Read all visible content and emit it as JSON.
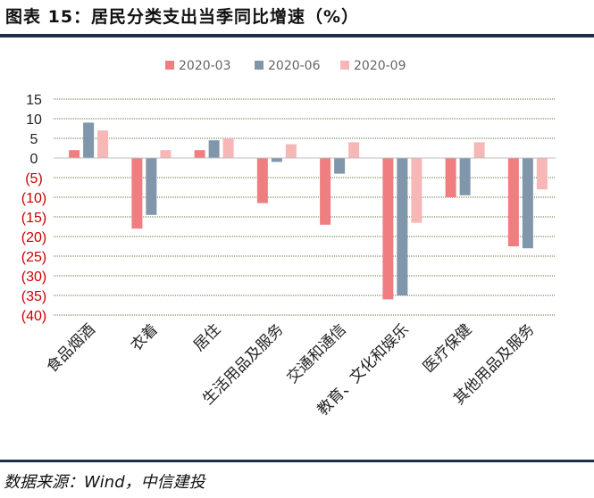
{
  "title": "图表 15：居民分类支出当季同比增速（%）",
  "source": "数据来源：Wind，中信建投",
  "colors": {
    "series": [
      "#f07e80",
      "#7f96ab",
      "#f6b7b6"
    ],
    "negative_tick": "#cc0000",
    "positive_tick": "#222222",
    "grid": "#5a7a3a",
    "rule": "#1c2f4b"
  },
  "chart_data": {
    "type": "bar",
    "categories": [
      "食品烟酒",
      "衣着",
      "居住",
      "生活用品及服务",
      "交通和通信",
      "教育、文化和娱乐",
      "医疗保健",
      "其他用品及服务"
    ],
    "series": [
      {
        "name": "2020-03",
        "values": [
          2,
          -18,
          2,
          -11.5,
          -17,
          -36,
          -10,
          -22.5
        ]
      },
      {
        "name": "2020-06",
        "values": [
          9,
          -14.5,
          4.5,
          -1,
          -4,
          -35,
          -9.5,
          -23
        ]
      },
      {
        "name": "2020-09",
        "values": [
          7,
          2,
          5,
          3.5,
          4,
          -16.5,
          4,
          -8
        ]
      }
    ],
    "ylim": [
      -40,
      15
    ],
    "yticks": [
      15,
      10,
      5,
      0,
      -5,
      -10,
      -15,
      -20,
      -25,
      -30,
      -35,
      -40
    ],
    "ytick_labels": [
      "15",
      "10",
      "5",
      "0",
      "(5)",
      "(10)",
      "(15)",
      "(20)",
      "(25)",
      "(30)",
      "(35)",
      "(40)"
    ],
    "grid": true,
    "legend_position": "top"
  }
}
